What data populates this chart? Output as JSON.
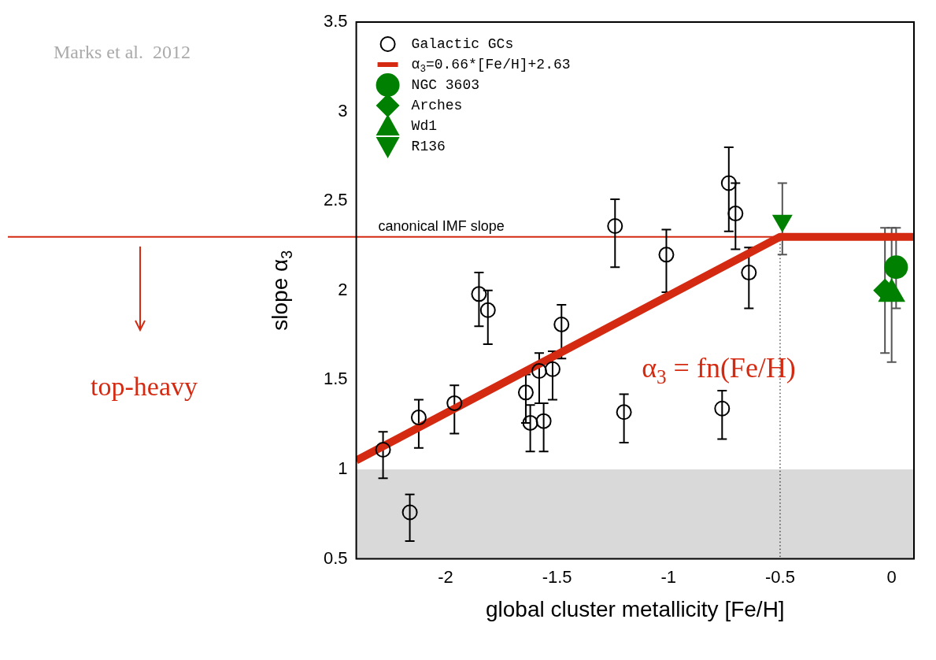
{
  "chart_data": {
    "type": "scatter",
    "xlabel": "global cluster metallicity [Fe/H]",
    "ylabel": "slope α$_{3}$",
    "xlim": [
      -2.4,
      0.1
    ],
    "xticks": [
      -2,
      -1.5,
      -1,
      -0.5,
      0
    ],
    "ylim": [
      0.5,
      3.5
    ],
    "yticks": [
      0.5,
      1,
      1.5,
      2,
      2.5,
      3,
      3.5
    ],
    "grid": false,
    "legend": "top left",
    "series": [
      {
        "name": "Galactic GCs",
        "marker": "circle",
        "color": "#000000",
        "x": [
          -2.28,
          -2.16,
          -2.12,
          -1.96,
          -1.85,
          -1.81,
          -1.64,
          -1.62,
          -1.58,
          -1.56,
          -1.52,
          -1.48,
          -1.24,
          -1.2,
          -1.01,
          -0.76,
          -0.73,
          -0.7,
          -0.64
        ],
        "values": [
          1.11,
          0.76,
          1.29,
          1.37,
          1.98,
          1.89,
          1.43,
          1.26,
          1.55,
          1.27,
          1.56,
          1.81,
          2.36,
          1.32,
          2.2,
          1.34,
          2.6,
          2.43,
          2.1
        ],
        "errors": [
          [
            0.95,
            1.21
          ],
          [
            0.6,
            0.86
          ],
          [
            1.12,
            1.39
          ],
          [
            1.2,
            1.47
          ],
          [
            1.8,
            2.1
          ],
          [
            1.7,
            2.0
          ],
          [
            1.26,
            1.53
          ],
          [
            1.1,
            1.36
          ],
          [
            1.37,
            1.65
          ],
          [
            1.1,
            1.37
          ],
          [
            1.39,
            1.66
          ],
          [
            1.62,
            1.92
          ],
          [
            2.13,
            2.51
          ],
          [
            1.15,
            1.42
          ],
          [
            1.99,
            2.34
          ],
          [
            1.17,
            1.44
          ],
          [
            2.33,
            2.8
          ],
          [
            2.23,
            2.6
          ],
          [
            1.9,
            2.24
          ]
        ]
      },
      {
        "name": "α$_{3}$=0.66*[Fe/H]+2.63",
        "type": "line",
        "marker": "none",
        "color": "#d42a12",
        "x": [
          -2.4,
          -0.5,
          0.1
        ],
        "values": [
          1.05,
          2.3,
          2.3
        ]
      },
      {
        "name": "NGC 3603",
        "type": "scatter",
        "marker": "circle",
        "color": "#008000",
        "x": [
          0.02
        ],
        "values": [
          2.13
        ],
        "errors": [
          [
            1.9,
            2.35
          ]
        ]
      },
      {
        "name": "Arches",
        "type": "scatter",
        "marker": "diamond",
        "color": "#008000",
        "x": [
          -0.03
        ],
        "values": [
          2.0
        ],
        "errors": [
          [
            1.65,
            2.35
          ]
        ]
      },
      {
        "name": "Wd1",
        "type": "scatter",
        "marker": "triangle",
        "color": "#008000",
        "x": [
          0.0
        ],
        "values": [
          1.98
        ],
        "errors": [
          [
            1.6,
            2.35
          ]
        ]
      },
      {
        "name": "R136",
        "type": "scatter",
        "marker": "triangle-down",
        "color": "#008000",
        "x": [
          -0.49
        ],
        "values": [
          2.39
        ],
        "errors": [
          [
            2.2,
            2.6
          ]
        ]
      }
    ],
    "ref_lines": [
      {
        "axis": "y",
        "value": 2.3,
        "label": "canonical IMF slope",
        "color": "#d42a12",
        "line_style": "solid"
      },
      {
        "axis": "x",
        "value": -0.5,
        "label": null,
        "color": "#000000",
        "line_style": "dotted"
      }
    ],
    "bands": [
      {
        "axis": "y",
        "from": 0.5,
        "to": 1,
        "label": null,
        "color": "#d9d9d9"
      }
    ],
    "annotations": [
      "Marks et al.  2012",
      "top-heavy",
      "α$_{3}$ = fn(Fe/H)"
    ]
  }
}
